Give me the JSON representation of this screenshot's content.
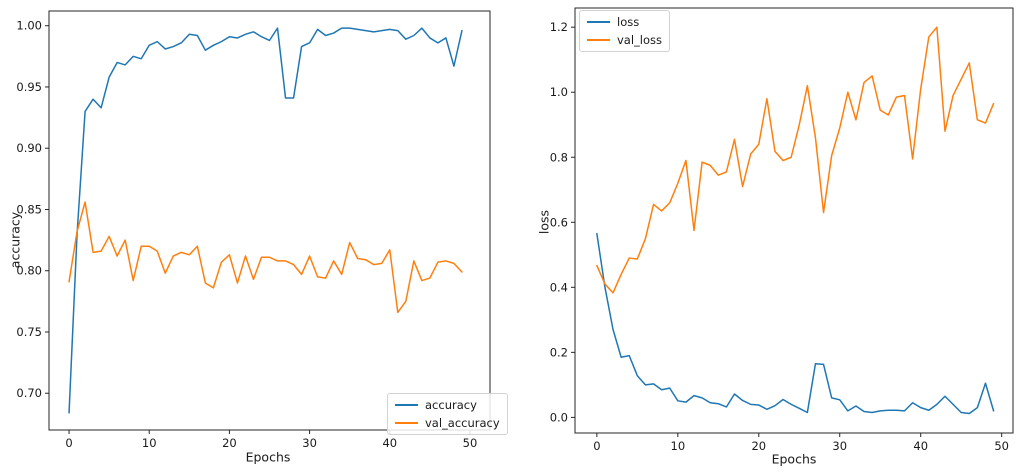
{
  "chart_data": [
    {
      "type": "line",
      "xlabel": "Epochs",
      "ylabel": "accuracy",
      "x_start": 0,
      "x_step": 1,
      "n_points": 50,
      "xlim": [
        -2.5,
        52.5
      ],
      "ylim": [
        0.67,
        1.012
      ],
      "grid": false,
      "legend_loc": "lower right",
      "x_ticks": [
        0,
        10,
        20,
        30,
        40,
        50
      ],
      "x_tick_labels": [
        "0",
        "10",
        "20",
        "30",
        "40",
        "50"
      ],
      "y_ticks": [
        0.7,
        0.75,
        0.8,
        0.85,
        0.9,
        0.95,
        1.0
      ],
      "y_tick_labels": [
        "0.70",
        "0.75",
        "0.80",
        "0.85",
        "0.90",
        "0.95",
        "1.00"
      ],
      "series": [
        {
          "name": "accuracy",
          "color": "#1f77b4",
          "values": [
            0.684,
            0.83,
            0.93,
            0.94,
            0.933,
            0.958,
            0.97,
            0.968,
            0.975,
            0.973,
            0.984,
            0.987,
            0.981,
            0.983,
            0.986,
            0.993,
            0.992,
            0.98,
            0.984,
            0.987,
            0.991,
            0.99,
            0.993,
            0.995,
            0.991,
            0.988,
            0.998,
            0.941,
            0.941,
            0.983,
            0.986,
            0.997,
            0.992,
            0.994,
            0.998,
            0.998,
            0.997,
            0.996,
            0.995,
            0.996,
            0.997,
            0.996,
            0.989,
            0.992,
            0.998,
            0.99,
            0.986,
            0.99,
            0.967,
            0.996
          ]
        },
        {
          "name": "val_accuracy",
          "color": "#ff7f0e",
          "values": [
            0.791,
            0.832,
            0.856,
            0.815,
            0.816,
            0.828,
            0.812,
            0.825,
            0.792,
            0.82,
            0.82,
            0.816,
            0.798,
            0.812,
            0.815,
            0.813,
            0.82,
            0.79,
            0.786,
            0.807,
            0.813,
            0.79,
            0.812,
            0.793,
            0.811,
            0.811,
            0.808,
            0.808,
            0.805,
            0.797,
            0.812,
            0.795,
            0.794,
            0.808,
            0.797,
            0.823,
            0.81,
            0.809,
            0.805,
            0.806,
            0.817,
            0.766,
            0.775,
            0.808,
            0.792,
            0.794,
            0.807,
            0.808,
            0.806,
            0.799
          ]
        }
      ]
    },
    {
      "type": "line",
      "xlabel": "Epochs",
      "ylabel": "loss",
      "x_start": 0,
      "x_step": 1,
      "n_points": 50,
      "xlim": [
        -2.7,
        51.4
      ],
      "ylim": [
        -0.048,
        1.259
      ],
      "grid": false,
      "legend_loc": "upper left",
      "x_ticks": [
        0,
        10,
        20,
        30,
        40,
        50
      ],
      "x_tick_labels": [
        "0",
        "10",
        "20",
        "30",
        "40",
        "50"
      ],
      "y_ticks": [
        0.0,
        0.2,
        0.4,
        0.6,
        0.8,
        1.0,
        1.2
      ],
      "y_tick_labels": [
        "0.0",
        "0.2",
        "0.4",
        "0.6",
        "0.8",
        "1.0",
        "1.2"
      ],
      "series": [
        {
          "name": "loss",
          "color": "#1f77b4",
          "values": [
            0.565,
            0.4,
            0.27,
            0.185,
            0.19,
            0.128,
            0.1,
            0.103,
            0.085,
            0.09,
            0.051,
            0.047,
            0.067,
            0.06,
            0.045,
            0.042,
            0.032,
            0.072,
            0.052,
            0.04,
            0.038,
            0.025,
            0.036,
            0.055,
            0.04,
            0.028,
            0.015,
            0.165,
            0.163,
            0.06,
            0.054,
            0.02,
            0.035,
            0.018,
            0.015,
            0.02,
            0.022,
            0.022,
            0.02,
            0.045,
            0.03,
            0.022,
            0.04,
            0.065,
            0.04,
            0.015,
            0.012,
            0.03,
            0.105,
            0.02
          ]
        },
        {
          "name": "val_loss",
          "color": "#ff7f0e",
          "values": [
            0.467,
            0.41,
            0.383,
            0.44,
            0.49,
            0.487,
            0.55,
            0.655,
            0.635,
            0.66,
            0.72,
            0.79,
            0.575,
            0.785,
            0.775,
            0.745,
            0.755,
            0.855,
            0.71,
            0.81,
            0.84,
            0.98,
            0.818,
            0.79,
            0.8,
            0.9,
            1.02,
            0.86,
            0.63,
            0.805,
            0.89,
            1.0,
            0.915,
            1.03,
            1.05,
            0.945,
            0.93,
            0.985,
            0.99,
            0.795,
            1.01,
            1.17,
            1.2,
            0.88,
            0.99,
            1.04,
            1.09,
            0.915,
            0.905,
            0.965
          ]
        }
      ]
    }
  ],
  "style": {
    "spine_color": "#262626",
    "tick_color": "#262626",
    "line_width": 1.5
  }
}
